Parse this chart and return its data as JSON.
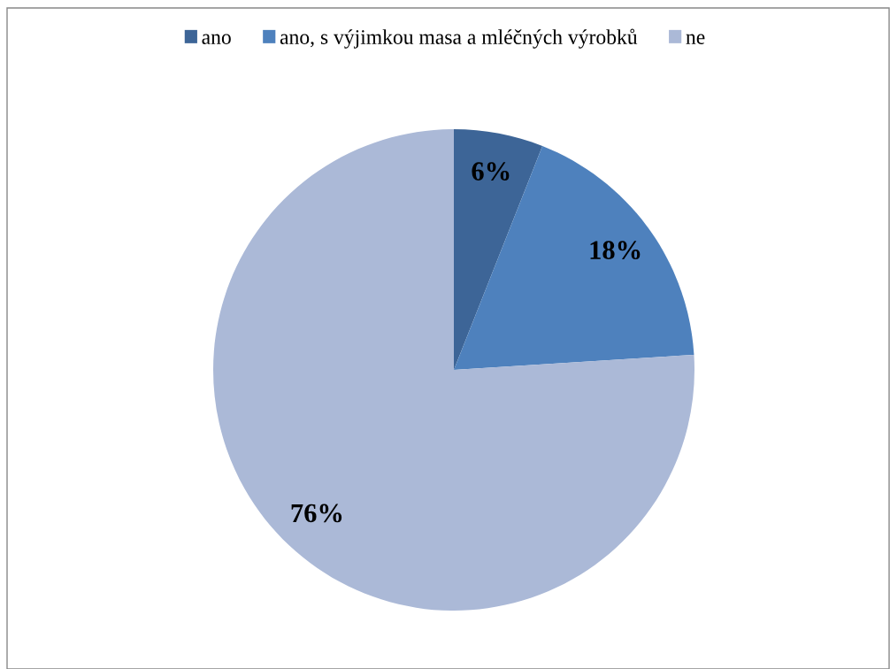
{
  "chart_data": {
    "type": "pie",
    "categories": [
      "ano",
      "ano, s výjimkou masa a mléčných výrobků",
      "ne"
    ],
    "values": [
      6,
      18,
      76
    ],
    "colors": [
      "#3d6597",
      "#4e81bd",
      "#abb9d7"
    ],
    "value_labels": [
      "6%",
      "18%",
      "76%"
    ],
    "legend": "top"
  }
}
